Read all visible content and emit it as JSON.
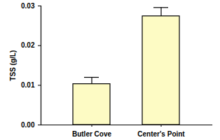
{
  "chart_data": {
    "type": "bar",
    "categories": [
      "Butler Cove",
      "Center's Point"
    ],
    "values": [
      0.0103,
      0.0274
    ],
    "errors": [
      0.0017,
      0.0022
    ],
    "color": "#fdfbc4",
    "y_label": "TSS (g/L)",
    "ylim": [
      0,
      0.03
    ],
    "yticks": [
      {
        "value": 0,
        "label": "0.00"
      },
      {
        "value": 0.01,
        "label": "0.01"
      },
      {
        "value": 0.02,
        "label": "0.02"
      },
      {
        "value": 0.03,
        "label": "0.03"
      }
    ],
    "grid": false
  }
}
